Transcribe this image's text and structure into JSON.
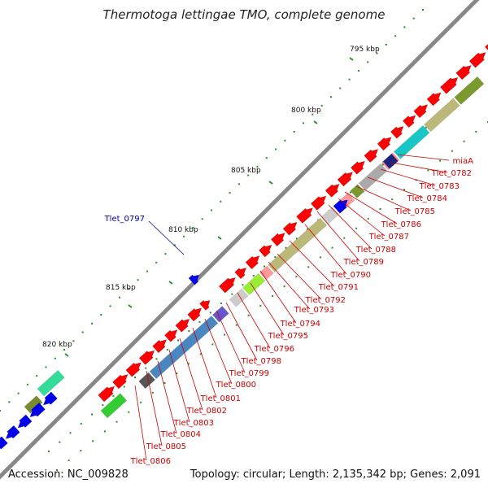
{
  "title": "Thermotoga lettingae TMO, complete genome",
  "footer": {
    "accession": "Accession: NC_009828",
    "summary": "Topology: circular; Length: 2,135,342 bp; Genes: 2,091"
  },
  "colors": {
    "backbone": "#888888",
    "tick": "#2e8b2e",
    "label_red": "#cc0000",
    "label_blue": "#0000aa"
  },
  "kbp_labels": [
    "795 kbp",
    "800 kbp",
    "805 kbp",
    "810 kbp",
    "815 kbp",
    "820 kbp"
  ],
  "gene_labels": [
    {
      "text": "miaA",
      "color": "red"
    },
    {
      "text": "Tlet_0782",
      "color": "red"
    },
    {
      "text": "Tlet_0783",
      "color": "red"
    },
    {
      "text": "Tlet_0784",
      "color": "red"
    },
    {
      "text": "Tlet_0785",
      "color": "red"
    },
    {
      "text": "Tlet_0786",
      "color": "red"
    },
    {
      "text": "Tlet_0787",
      "color": "red"
    },
    {
      "text": "Tlet_0788",
      "color": "red"
    },
    {
      "text": "Tlet_0789",
      "color": "red"
    },
    {
      "text": "Tlet_0790",
      "color": "red"
    },
    {
      "text": "Tlet_0791",
      "color": "red"
    },
    {
      "text": "Tlet_0792",
      "color": "red"
    },
    {
      "text": "Tlet_0793",
      "color": "red"
    },
    {
      "text": "Tlet_0794",
      "color": "red"
    },
    {
      "text": "Tlet_0795",
      "color": "red"
    },
    {
      "text": "Tlet_0796",
      "color": "red"
    },
    {
      "text": "Tlet_0798",
      "color": "red"
    },
    {
      "text": "Tlet_0799",
      "color": "red"
    },
    {
      "text": "Tlet_0800",
      "color": "red"
    },
    {
      "text": "Tlet_0801",
      "color": "red"
    },
    {
      "text": "Tlet_0802",
      "color": "red"
    },
    {
      "text": "Tlet_0803",
      "color": "red"
    },
    {
      "text": "Tlet_0804",
      "color": "red"
    },
    {
      "text": "Tlet_0805",
      "color": "red"
    },
    {
      "text": "Tlet_0806",
      "color": "red"
    },
    {
      "text": "Tlet_0797",
      "color": "blue"
    }
  ]
}
